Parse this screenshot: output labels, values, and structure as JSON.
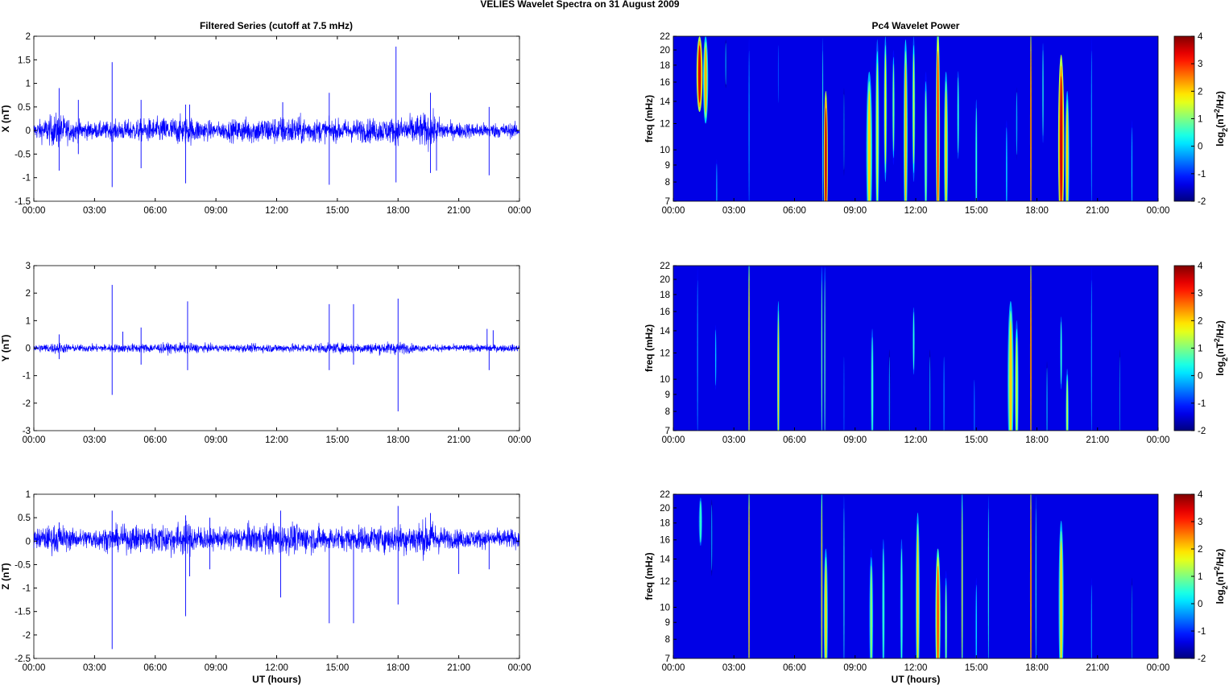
{
  "title": "VELIES Wavelet Spectra on 31 August    2009",
  "chart_data": [
    {
      "type": "line",
      "title": "Filtered Series (cutoff at 7.5 mHz)",
      "ylabel": "X (nT)",
      "xlabel": "",
      "xlim": [
        0,
        24
      ],
      "ylim": [
        -1.5,
        2
      ],
      "xticks": [
        "00:00",
        "03:00",
        "06:00",
        "09:00",
        "12:00",
        "15:00",
        "18:00",
        "21:00",
        "00:00"
      ],
      "yticks": [
        "-1.5",
        "-1",
        "-0.5",
        "0",
        "0.5",
        "1",
        "1.5",
        "2"
      ],
      "noise_amplitude": 0.12,
      "noise_envelope": [
        [
          0,
          1
        ],
        [
          1.2,
          2.2
        ],
        [
          1.8,
          1.4
        ],
        [
          3,
          1
        ],
        [
          7.5,
          1.8
        ],
        [
          9,
          1
        ],
        [
          10.5,
          1.6
        ],
        [
          13,
          1.8
        ],
        [
          14.5,
          1.3
        ],
        [
          18,
          1.6
        ],
        [
          19.6,
          2.2
        ],
        [
          20.5,
          1
        ],
        [
          24,
          0.9
        ]
      ],
      "spikes": [
        [
          1.25,
          0.9
        ],
        [
          1.25,
          -0.85
        ],
        [
          2.2,
          0.65
        ],
        [
          2.2,
          -0.5
        ],
        [
          3.87,
          1.45
        ],
        [
          3.87,
          -1.2
        ],
        [
          5.3,
          0.65
        ],
        [
          5.3,
          -0.8
        ],
        [
          7.5,
          0.55
        ],
        [
          7.5,
          -1.12
        ],
        [
          7.7,
          0.55
        ],
        [
          12.3,
          0.6
        ],
        [
          14.6,
          0.8
        ],
        [
          14.6,
          -1.15
        ],
        [
          17.9,
          1.78
        ],
        [
          17.9,
          -1.1
        ],
        [
          19.6,
          0.8
        ],
        [
          19.6,
          -0.9
        ],
        [
          19.9,
          -0.85
        ],
        [
          22.5,
          0.5
        ],
        [
          22.5,
          -0.95
        ]
      ]
    },
    {
      "type": "line",
      "ylabel": "Y (nT)",
      "xlabel": "",
      "xlim": [
        0,
        24
      ],
      "ylim": [
        -3,
        3
      ],
      "xticks": [
        "00:00",
        "03:00",
        "06:00",
        "09:00",
        "12:00",
        "15:00",
        "18:00",
        "21:00",
        "00:00"
      ],
      "yticks": [
        "-3",
        "-2",
        "-1",
        "0",
        "1",
        "2",
        "3"
      ],
      "noise_amplitude": 0.09,
      "noise_envelope": [
        [
          0,
          1
        ],
        [
          1.2,
          1.6
        ],
        [
          2,
          1
        ],
        [
          7.5,
          1.5
        ],
        [
          9,
          1
        ],
        [
          16.5,
          1.5
        ],
        [
          18,
          1.8
        ],
        [
          19,
          1
        ],
        [
          24,
          1
        ]
      ],
      "spikes": [
        [
          1.25,
          0.5
        ],
        [
          1.25,
          -0.4
        ],
        [
          3.87,
          2.3
        ],
        [
          3.87,
          -1.7
        ],
        [
          4.4,
          0.6
        ],
        [
          5.3,
          0.75
        ],
        [
          5.3,
          -0.6
        ],
        [
          7.6,
          1.7
        ],
        [
          7.6,
          -0.8
        ],
        [
          14.6,
          1.6
        ],
        [
          14.6,
          -0.8
        ],
        [
          15.8,
          1.6
        ],
        [
          15.8,
          -0.6
        ],
        [
          18,
          1.8
        ],
        [
          18,
          -2.3
        ],
        [
          22.4,
          0.7
        ],
        [
          22.5,
          -0.8
        ],
        [
          22.7,
          0.65
        ]
      ]
    },
    {
      "type": "line",
      "ylabel": "Z (nT)",
      "xlabel": "UT (hours)",
      "xlim": [
        0,
        24
      ],
      "ylim": [
        -2.5,
        1
      ],
      "xticks": [
        "00:00",
        "03:00",
        "06:00",
        "09:00",
        "12:00",
        "15:00",
        "18:00",
        "21:00",
        "00:00"
      ],
      "yticks": [
        "-2.5",
        "-2",
        "-1.5",
        "-1",
        "-0.5",
        "0",
        "0.5",
        "1"
      ],
      "baseline": 0.05,
      "noise_amplitude": 0.14,
      "noise_envelope": [
        [
          0,
          1
        ],
        [
          1.2,
          1.6
        ],
        [
          2,
          1
        ],
        [
          7.5,
          1.8
        ],
        [
          9,
          1
        ],
        [
          10.5,
          1.5
        ],
        [
          13,
          1.6
        ],
        [
          15,
          1.2
        ],
        [
          18,
          1.5
        ],
        [
          19.6,
          2
        ],
        [
          20.5,
          1
        ],
        [
          24,
          1
        ]
      ],
      "spikes": [
        [
          1.25,
          0.4
        ],
        [
          3.87,
          0.65
        ],
        [
          3.87,
          -2.3
        ],
        [
          7.5,
          0.55
        ],
        [
          7.5,
          -1.6
        ],
        [
          7.7,
          -0.75
        ],
        [
          8.7,
          0.5
        ],
        [
          8.7,
          -0.6
        ],
        [
          12.2,
          0.65
        ],
        [
          12.2,
          -1.2
        ],
        [
          14.6,
          -1.75
        ],
        [
          15.8,
          -1.75
        ],
        [
          18,
          0.75
        ],
        [
          18,
          -1.35
        ],
        [
          19.6,
          0.6
        ],
        [
          21,
          -0.7
        ],
        [
          22.5,
          -0.6
        ]
      ]
    },
    {
      "type": "heatmap",
      "title": "Pc4 Wavelet Power",
      "ylabel": "freq (mHz)",
      "xlabel": "",
      "xlim": [
        0,
        24
      ],
      "ylim": [
        7,
        22
      ],
      "yscale": "log",
      "xticks": [
        "00:00",
        "03:00",
        "06:00",
        "09:00",
        "12:00",
        "15:00",
        "18:00",
        "21:00",
        "00:00"
      ],
      "yticks": [
        "7",
        "8",
        "9",
        "10",
        "12",
        "14",
        "16",
        "18",
        "20",
        "22"
      ],
      "colorbar": {
        "label": "log2(nT2/Hz)",
        "range": [
          -2,
          4
        ],
        "ticks": [
          "-2",
          "-1",
          "0",
          "1",
          "2",
          "3",
          "4"
        ]
      },
      "events": [
        [
          1.3,
          13,
          22,
          3.5,
          0.3
        ],
        [
          1.6,
          12,
          22,
          2.2,
          0.25
        ],
        [
          2.15,
          7,
          9,
          0,
          0.1
        ],
        [
          2.6,
          15,
          22,
          -0.5,
          0.15
        ],
        [
          3.75,
          7,
          22,
          0,
          0.05
        ],
        [
          5.2,
          13,
          22,
          -0.8,
          0.1
        ],
        [
          7.4,
          7,
          22,
          0.5,
          0.06
        ],
        [
          7.55,
          7,
          14,
          3.6,
          0.2
        ],
        [
          8.45,
          8,
          16,
          -0.5,
          0.1
        ],
        [
          9.7,
          7,
          16,
          2,
          0.3
        ],
        [
          10.1,
          7,
          20,
          1.5,
          0.2
        ],
        [
          10.5,
          8,
          22,
          1.8,
          0.15
        ],
        [
          10.9,
          9,
          20,
          1,
          0.15
        ],
        [
          11.5,
          7,
          20,
          2.2,
          0.2
        ],
        [
          11.9,
          8,
          22,
          1.5,
          0.15
        ],
        [
          12.5,
          7,
          16,
          1,
          0.2
        ],
        [
          13.1,
          7,
          22,
          3,
          0.2
        ],
        [
          13.5,
          7,
          16,
          2,
          0.2
        ],
        [
          14.1,
          9,
          18,
          0.5,
          0.15
        ],
        [
          15,
          7,
          14,
          0.5,
          0.15
        ],
        [
          16.5,
          7,
          12,
          0,
          0.15
        ],
        [
          17,
          9,
          16,
          -0.3,
          0.15
        ],
        [
          17.7,
          7,
          22,
          3.5,
          0.05
        ],
        [
          18.3,
          10,
          22,
          0.5,
          0.1
        ],
        [
          19.2,
          7,
          18,
          3.5,
          0.3
        ],
        [
          19.5,
          7,
          14,
          2,
          0.2
        ],
        [
          20.7,
          7,
          22,
          0,
          0.05
        ],
        [
          22.7,
          7,
          12,
          0,
          0.1
        ]
      ]
    },
    {
      "type": "heatmap",
      "ylabel": "freq (mHz)",
      "xlabel": "",
      "xlim": [
        0,
        24
      ],
      "ylim": [
        7,
        22
      ],
      "yscale": "log",
      "xticks": [
        "00:00",
        "03:00",
        "06:00",
        "09:00",
        "12:00",
        "15:00",
        "18:00",
        "21:00",
        "00:00"
      ],
      "yticks": [
        "7",
        "8",
        "9",
        "10",
        "12",
        "14",
        "16",
        "18",
        "20",
        "22"
      ],
      "colorbar": {
        "label": "log2(nT2/Hz)",
        "range": [
          -2,
          4
        ],
        "ticks": [
          "-2",
          "-1",
          "0",
          "1",
          "2",
          "3",
          "4"
        ]
      },
      "events": [
        [
          1.2,
          7,
          22,
          0,
          0.06
        ],
        [
          2.1,
          9,
          15,
          0,
          0.12
        ],
        [
          3.75,
          7,
          22,
          2.8,
          0.05
        ],
        [
          5.2,
          7,
          16,
          2,
          0.12
        ],
        [
          7.35,
          7,
          22,
          1,
          0.05
        ],
        [
          7.5,
          7,
          22,
          1,
          0.05
        ],
        [
          8.45,
          7,
          12,
          -0.6,
          0.08
        ],
        [
          9.85,
          7,
          14,
          0.5,
          0.2
        ],
        [
          10.7,
          7,
          12,
          -0.5,
          0.15
        ],
        [
          11.9,
          10,
          17,
          0.5,
          0.15
        ],
        [
          12.7,
          7,
          12,
          -0.5,
          0.15
        ],
        [
          13.4,
          7,
          12,
          -0.6,
          0.15
        ],
        [
          14.9,
          7,
          10,
          -0.7,
          0.15
        ],
        [
          16.7,
          7,
          16,
          2,
          0.3
        ],
        [
          17,
          7,
          14,
          1.5,
          0.2
        ],
        [
          17.7,
          7,
          22,
          3.5,
          0.05
        ],
        [
          18.5,
          7,
          11,
          -0.4,
          0.15
        ],
        [
          19.2,
          9,
          16,
          0.5,
          0.15
        ],
        [
          19.5,
          7,
          10,
          1.5,
          0.15
        ],
        [
          20.7,
          7,
          22,
          0,
          0.05
        ],
        [
          22.1,
          7,
          12,
          -0.5,
          0.1
        ]
      ]
    },
    {
      "type": "heatmap",
      "ylabel": "freq (mHz)",
      "xlabel": "UT (hours)",
      "xlim": [
        0,
        24
      ],
      "ylim": [
        7,
        22
      ],
      "yscale": "log",
      "xticks": [
        "00:00",
        "03:00",
        "06:00",
        "09:00",
        "12:00",
        "15:00",
        "18:00",
        "21:00",
        "00:00"
      ],
      "yticks": [
        "7",
        "8",
        "9",
        "10",
        "12",
        "14",
        "16",
        "18",
        "20",
        "22"
      ],
      "colorbar": {
        "label": "log2(nT2/Hz)",
        "range": [
          -2,
          4
        ],
        "ticks": [
          "-2",
          "-1",
          "0",
          "1",
          "2",
          "3",
          "4"
        ]
      },
      "events": [
        [
          1.35,
          15,
          22,
          0.5,
          0.25
        ],
        [
          1.9,
          12,
          22,
          -0.5,
          0.15
        ],
        [
          3.75,
          7,
          22,
          3,
          0.05
        ],
        [
          7.35,
          7,
          22,
          2.5,
          0.06
        ],
        [
          7.55,
          7,
          14,
          2,
          0.2
        ],
        [
          8.45,
          7,
          22,
          0.5,
          0.06
        ],
        [
          9.8,
          7,
          14,
          1,
          0.25
        ],
        [
          10.4,
          7,
          16,
          0.5,
          0.2
        ],
        [
          11.3,
          7,
          16,
          0.5,
          0.2
        ],
        [
          12.1,
          7,
          18,
          2,
          0.2
        ],
        [
          13.1,
          7,
          14,
          2.8,
          0.25
        ],
        [
          13.5,
          7,
          12,
          1,
          0.15
        ],
        [
          14.3,
          7,
          22,
          2,
          0.05
        ],
        [
          15,
          7,
          12,
          0,
          0.15
        ],
        [
          15.6,
          7,
          22,
          0.5,
          0.05
        ],
        [
          17.7,
          7,
          22,
          3.5,
          0.05
        ],
        [
          17.95,
          7,
          22,
          0.5,
          0.05
        ],
        [
          19.2,
          7,
          17,
          2,
          0.25
        ],
        [
          20.7,
          7,
          12,
          0,
          0.06
        ],
        [
          22.7,
          7,
          12,
          -0.5,
          0.1
        ]
      ]
    }
  ]
}
